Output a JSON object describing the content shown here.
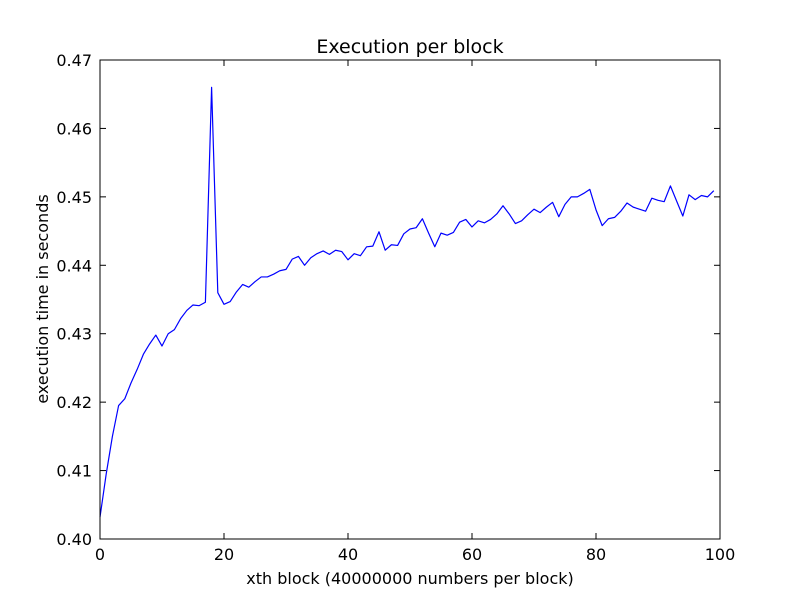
{
  "chart_data": {
    "type": "line",
    "title": "Execution per block",
    "xlabel": "xth block (40000000 numbers per block)",
    "ylabel": "execution time in seconds",
    "xlim": [
      0,
      100
    ],
    "ylim": [
      0.4,
      0.47
    ],
    "x_ticks": [
      0,
      20,
      40,
      60,
      80,
      100
    ],
    "x_tick_labels": [
      "0",
      "20",
      "40",
      "60",
      "80",
      "100"
    ],
    "y_ticks": [
      0.4,
      0.41,
      0.42,
      0.43,
      0.44,
      0.45,
      0.46,
      0.47
    ],
    "y_tick_labels": [
      "0.40",
      "0.41",
      "0.42",
      "0.43",
      "0.44",
      "0.45",
      "0.46",
      "0.47"
    ],
    "grid": false,
    "line_color": "#0000ff",
    "series": [
      {
        "x": [
          0,
          1,
          2,
          3,
          4,
          5,
          6,
          7,
          8,
          9,
          10,
          11,
          12,
          13,
          14,
          15,
          16,
          17,
          18,
          19,
          20,
          21,
          22,
          23,
          24,
          25,
          26,
          27,
          28,
          29,
          30,
          31,
          32,
          33,
          34,
          35,
          36,
          37,
          38,
          39,
          40,
          41,
          42,
          43,
          44,
          45,
          46,
          47,
          48,
          49,
          50,
          51,
          52,
          53,
          54,
          55,
          56,
          57,
          58,
          59,
          60,
          61,
          62,
          63,
          64,
          65,
          66,
          67,
          68,
          69,
          70,
          71,
          72,
          73,
          74,
          75,
          76,
          77,
          78,
          79,
          80,
          81,
          82,
          83,
          84,
          85,
          86,
          87,
          88,
          89,
          90,
          91,
          92,
          93,
          94,
          95,
          96,
          97,
          98,
          99
        ],
        "values": [
          0.4032,
          0.4095,
          0.415,
          0.4195,
          0.4205,
          0.4228,
          0.4248,
          0.427,
          0.4285,
          0.4298,
          0.4282,
          0.43,
          0.4306,
          0.4322,
          0.4334,
          0.4342,
          0.4341,
          0.4346,
          0.466,
          0.436,
          0.4343,
          0.4347,
          0.4361,
          0.4372,
          0.4368,
          0.4376,
          0.4383,
          0.4383,
          0.4387,
          0.4392,
          0.4394,
          0.4409,
          0.4413,
          0.44,
          0.4411,
          0.4417,
          0.4421,
          0.4416,
          0.4422,
          0.442,
          0.4408,
          0.4417,
          0.4414,
          0.4427,
          0.4428,
          0.4449,
          0.4422,
          0.443,
          0.4429,
          0.4446,
          0.4453,
          0.4455,
          0.4468,
          0.4447,
          0.4427,
          0.4447,
          0.4444,
          0.4448,
          0.4463,
          0.4467,
          0.4456,
          0.4465,
          0.4462,
          0.4467,
          0.4475,
          0.4487,
          0.4475,
          0.4461,
          0.4465,
          0.4474,
          0.4482,
          0.4477,
          0.4485,
          0.4492,
          0.4471,
          0.4489,
          0.45,
          0.45,
          0.4505,
          0.4511,
          0.4481,
          0.4458,
          0.4468,
          0.447,
          0.4479,
          0.4491,
          0.4485,
          0.4482,
          0.4479,
          0.4498,
          0.4495,
          0.4493,
          0.4516,
          0.4494,
          0.4472,
          0.4503,
          0.4496,
          0.4502,
          0.45,
          0.4509
        ]
      }
    ]
  }
}
